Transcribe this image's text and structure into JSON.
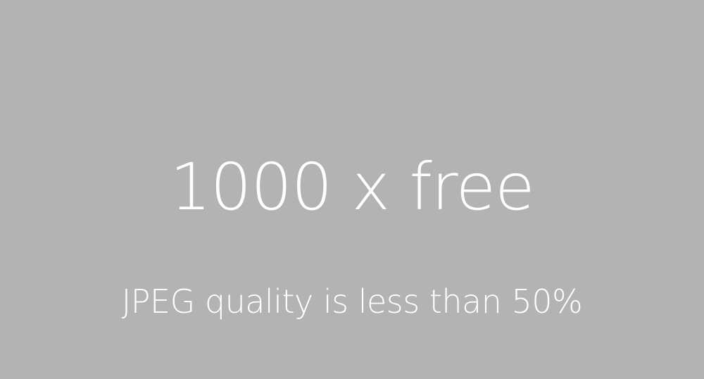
{
  "placeholder": {
    "title": "1000 x free",
    "message": "JPEG quality is less than 50%",
    "background_color": "#b3b3b3",
    "text_color": "#ffffff"
  }
}
